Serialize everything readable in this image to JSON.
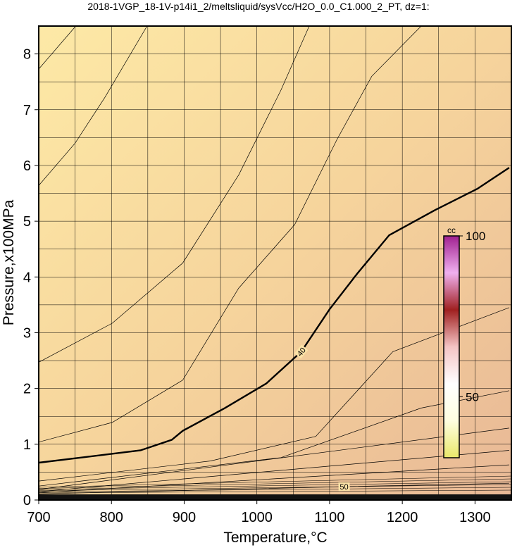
{
  "chart_data": {
    "type": "contour",
    "title": "2018-1VGP_18-1V-p14i1_2/meltsliquid/sysVcc/H2O_0.0_C1.000_2_PT, dz=1:",
    "xlabel": "Temperature,°C",
    "ylabel": "Pressure,x100MPa",
    "xlim": [
      700,
      1350
    ],
    "ylim": [
      0,
      8.5
    ],
    "xticks": [
      700,
      800,
      900,
      1000,
      1100,
      1200,
      1300
    ],
    "yticks": [
      0,
      1,
      2,
      3,
      4,
      5,
      6,
      7,
      8
    ],
    "xminorticks": [
      750,
      850,
      950,
      1050,
      1150,
      1250
    ],
    "yminorticks": [
      0.5,
      1.5,
      2.5,
      3.5,
      4.5,
      5.5,
      6.5,
      7.5
    ],
    "grid": true,
    "contours": [
      {
        "x": [
          700,
          751
        ],
        "y": [
          7.73,
          8.5
        ]
      },
      {
        "x": [
          700,
          750,
          791,
          849
        ],
        "y": [
          5.64,
          6.4,
          7.22,
          8.5
        ]
      },
      {
        "x": [
          700,
          801,
          898,
          975,
          1033,
          1072
        ],
        "y": [
          2.47,
          3.17,
          4.25,
          5.83,
          7.35,
          8.5
        ]
      },
      {
        "x": [
          700,
          801,
          898,
          975,
          1052,
          1110,
          1158,
          1226
        ],
        "y": [
          1.04,
          1.39,
          2.15,
          3.8,
          4.94,
          6.46,
          7.6,
          8.5
        ]
      },
      {
        "level": "40",
        "bold": true,
        "x": [
          700,
          840,
          883,
          898,
          956,
          1013,
          1061,
          1100,
          1138,
          1182,
          1245,
          1303,
          1347
        ],
        "y": [
          0.67,
          0.89,
          1.08,
          1.24,
          1.65,
          2.09,
          2.66,
          3.42,
          4.06,
          4.75,
          5.2,
          5.58,
          5.96
        ]
      },
      {
        "x": [
          700,
          936,
          1081,
          1187,
          1347
        ],
        "y": [
          0.34,
          0.7,
          1.14,
          2.66,
          3.45
        ]
      },
      {
        "x": [
          700,
          1033,
          1226,
          1347
        ],
        "y": [
          0.25,
          0.76,
          1.65,
          1.96
        ]
      },
      {
        "x": [
          700,
          1347
        ],
        "y": [
          0.19,
          1.29
        ]
      },
      {
        "x": [
          700,
          1347
        ],
        "y": [
          0.15,
          0.89
        ]
      },
      {
        "x": [
          700,
          1347
        ],
        "y": [
          0.13,
          0.63
        ]
      },
      {
        "level": "50",
        "x": [
          700,
          900,
          1120,
          1347
        ],
        "y": [
          0.11,
          0.17,
          0.24,
          0.3
        ]
      }
    ],
    "colorbar": {
      "title": "cc",
      "lim": [
        31,
        100
      ],
      "ticks": [
        50,
        100
      ],
      "colors": [
        "#e8e86a",
        "#fffde0",
        "#ffffff",
        "#f4c4c4",
        "#a02020",
        "#f0b0f0",
        "#a02090"
      ]
    },
    "background": [
      "#fde9a6",
      "#f6d49c",
      "#e8b896"
    ]
  }
}
